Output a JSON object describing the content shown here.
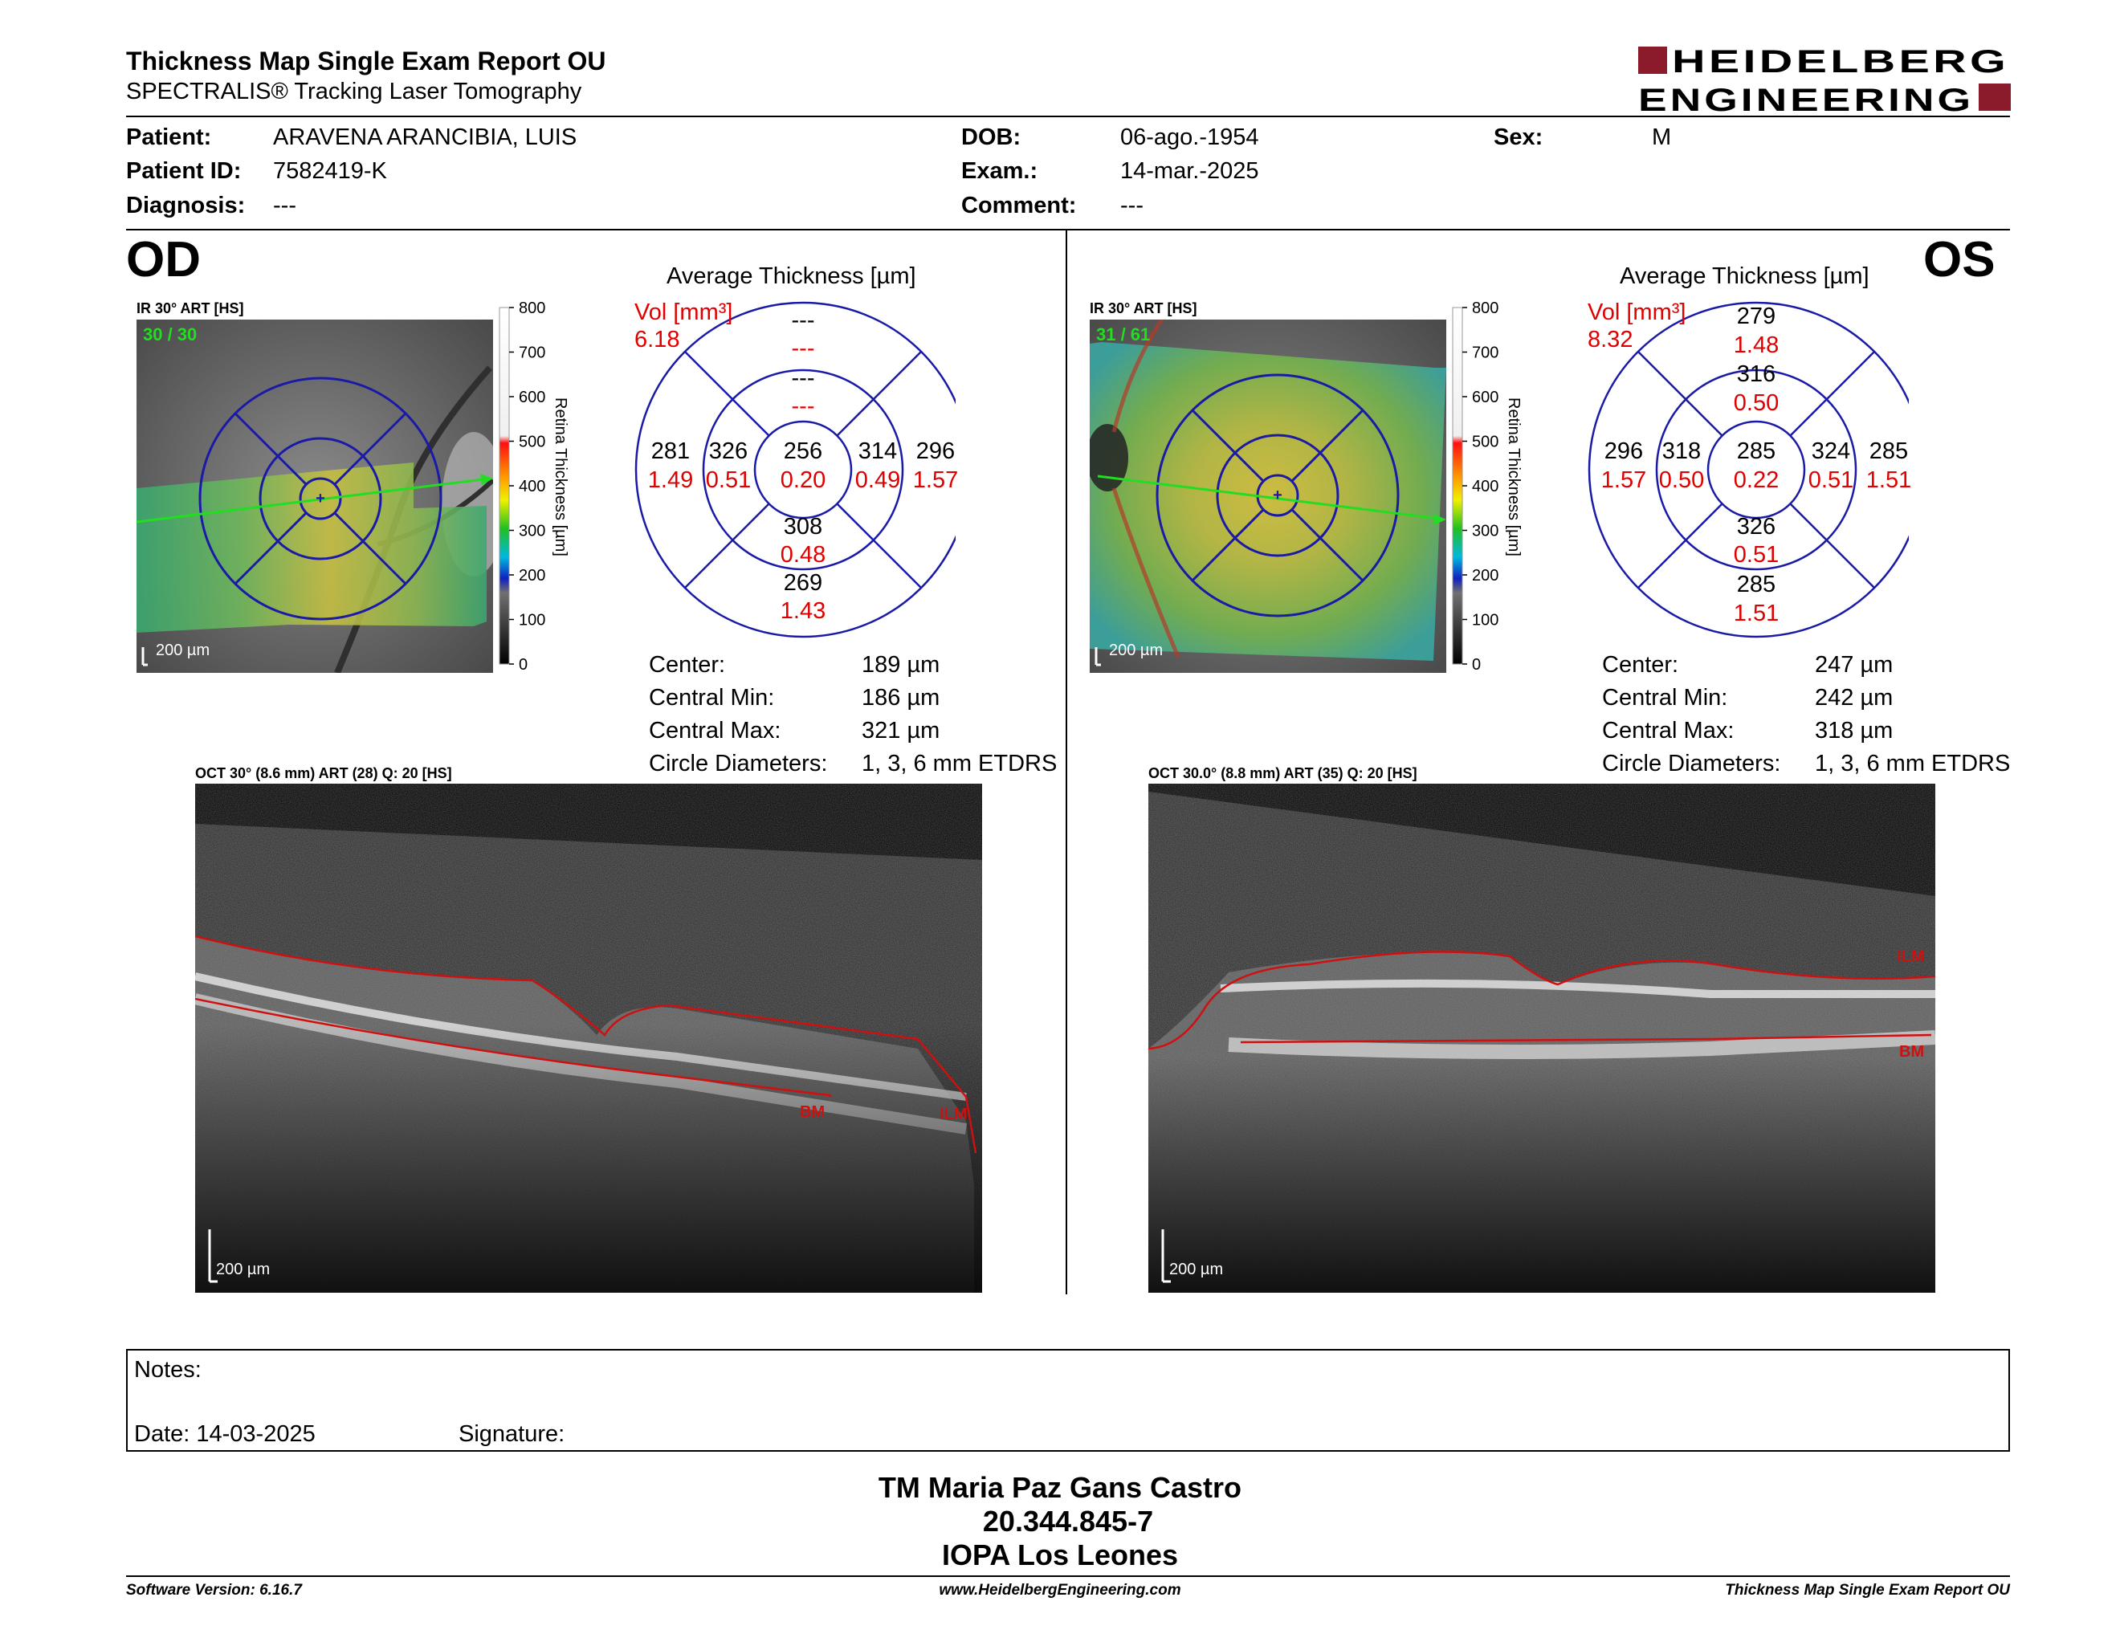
{
  "header": {
    "title": "Thickness Map Single Exam Report OU",
    "subtitle": "SPECTRALIS® Tracking Laser Tomography",
    "logo_line1": "HEIDELBERG",
    "logo_line2": "ENGINEERING",
    "brand_color": "#8b1a2b"
  },
  "patient": {
    "patient_label": "Patient:",
    "patient_value": "ARAVENA ARANCIBIA, LUIS",
    "id_label": "Patient ID:",
    "id_value": "7582419-K",
    "diagnosis_label": "Diagnosis:",
    "diagnosis_value": "---",
    "dob_label": "DOB:",
    "dob_value": "06-ago.-1954",
    "exam_label": "Exam.:",
    "exam_value": "14-mar.-2025",
    "comment_label": "Comment:",
    "comment_value": "---",
    "sex_label": "Sex:",
    "sex_value": "M"
  },
  "od": {
    "eye": "OD",
    "ir_label": "IR 30° ART [HS]",
    "ir_counter": "30 / 30",
    "scale_text": "200 µm",
    "colorbar_title": "Retina Thickness [µm]",
    "colorbar_ticks": [
      "800",
      "700",
      "600",
      "500",
      "400",
      "300",
      "200",
      "100",
      "0"
    ],
    "avg_title": "Average Thickness [µm]",
    "vol_label": "Vol [mm³]",
    "vol_value": "6.18",
    "sectors": {
      "outer_top": "---",
      "outer_top_vol": "---",
      "inner_top": "---",
      "inner_top_vol": "---",
      "outer_left": "281",
      "outer_left_vol": "1.49",
      "inner_left": "326",
      "inner_left_vol": "0.51",
      "center": "256",
      "center_vol": "0.20",
      "inner_right": "314",
      "inner_right_vol": "0.49",
      "outer_right": "296",
      "outer_right_vol": "1.57",
      "inner_bottom": "308",
      "inner_bottom_vol": "0.48",
      "outer_bottom": "269",
      "outer_bottom_vol": "1.43"
    },
    "stats": {
      "center_label": "Center:",
      "center_value": "189 µm",
      "min_label": "Central Min:",
      "min_value": "186 µm",
      "max_label": "Central Max:",
      "max_value": "321 µm",
      "diam_label": "Circle Diameters:",
      "diam_value": "1, 3, 6 mm ETDRS"
    },
    "oct_label": "OCT 30° (8.6 mm) ART (28) Q: 20 [HS]",
    "ilm": "ILM",
    "bm": "BM",
    "oct_scale": "200 µm"
  },
  "os": {
    "eye": "OS",
    "ir_label": "IR 30° ART [HS]",
    "ir_counter": "31 / 61",
    "scale_text": "200 µm",
    "colorbar_title": "Retina Thickness [µm]",
    "colorbar_ticks": [
      "800",
      "700",
      "600",
      "500",
      "400",
      "300",
      "200",
      "100",
      "0"
    ],
    "avg_title": "Average Thickness [µm]",
    "vol_label": "Vol [mm³]",
    "vol_value": "8.32",
    "sectors": {
      "outer_top": "279",
      "outer_top_vol": "1.48",
      "inner_top": "316",
      "inner_top_vol": "0.50",
      "outer_left": "296",
      "outer_left_vol": "1.57",
      "inner_left": "318",
      "inner_left_vol": "0.50",
      "center": "285",
      "center_vol": "0.22",
      "inner_right": "324",
      "inner_right_vol": "0.51",
      "outer_right": "285",
      "outer_right_vol": "1.51",
      "inner_bottom": "326",
      "inner_bottom_vol": "0.51",
      "outer_bottom": "285",
      "outer_bottom_vol": "1.51"
    },
    "stats": {
      "center_label": "Center:",
      "center_value": "247 µm",
      "min_label": "Central Min:",
      "min_value": "242 µm",
      "max_label": "Central Max:",
      "max_value": "318 µm",
      "diam_label": "Circle Diameters:",
      "diam_value": "1, 3, 6 mm ETDRS"
    },
    "oct_label": "OCT 30.0° (8.8 mm) ART (35) Q: 20 [HS]",
    "ilm": "ILM",
    "bm": "BM",
    "oct_scale": "200 µm"
  },
  "notes": {
    "notes_label": "Notes:",
    "date_label": "Date: 14-03-2025",
    "signature_label": "Signature:"
  },
  "signature": {
    "name": "TM Maria Paz Gans Castro",
    "id": "20.344.845-7",
    "place": "IOPA Los Leones"
  },
  "footer": {
    "software": "Software Version: 6.16.7",
    "website": "www.HeidelbergEngineering.com",
    "report": "Thickness Map Single Exam Report OU"
  },
  "colors": {
    "vol_red": "#e00000",
    "grid_blue": "#1a1aa6",
    "ilm_red": "#d01010"
  }
}
